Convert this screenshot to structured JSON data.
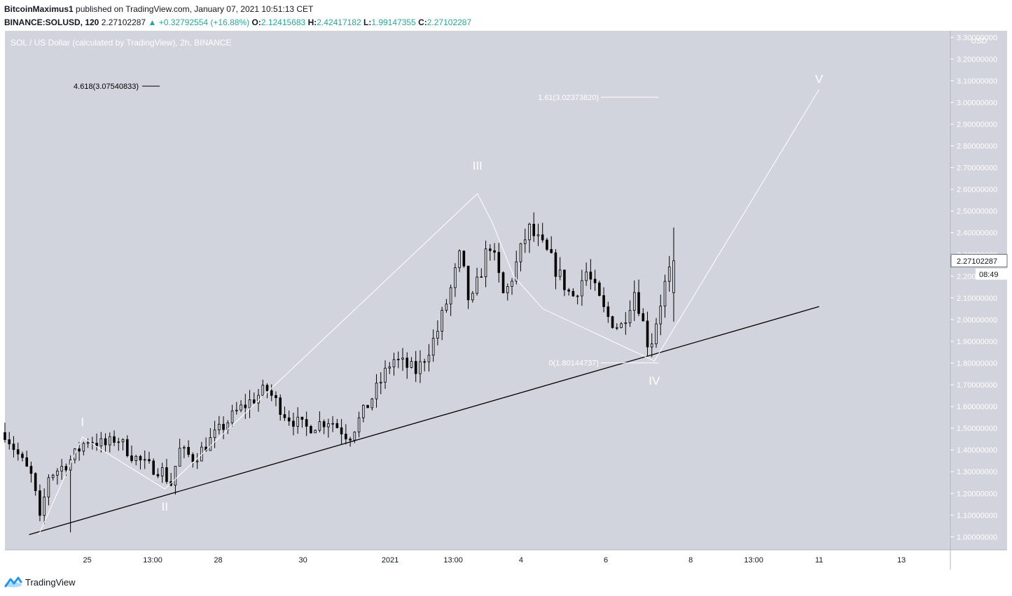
{
  "header": {
    "author": "BitcoinMaximus1",
    "published_text": "published on TradingView.com, January 07, 2021 10:51:13 CET",
    "symbol": "BINANCE:SOLUSD, 120",
    "last": "2.27102287",
    "change": "+0.32792554 (+16.88%)",
    "o_label": "O:",
    "o": "2.12415683",
    "h_label": "H:",
    "h": "2.42417182",
    "l_label": "L:",
    "l": "1.99147355",
    "c_label": "C:",
    "c": "2.27102287"
  },
  "chart_data": {
    "type": "candlestick",
    "title": "SOL / US Dollar (calculated by TradingView), 2h, BINANCE",
    "currency": "USD",
    "ylim": [
      0.94,
      3.33
    ],
    "y_ticks": [
      "1.00000000",
      "1.10000000",
      "1.20000000",
      "1.30000000",
      "1.40000000",
      "1.50000000",
      "1.60000000",
      "1.70000000",
      "1.80000000",
      "1.90000000",
      "2.00000000",
      "2.10000000",
      "2.20000000",
      "2.30000000",
      "2.40000000",
      "2.50000000",
      "2.60000000",
      "2.70000000",
      "2.80000000",
      "2.90000000",
      "3.00000000",
      "3.10000000",
      "3.20000000",
      "3.30000000"
    ],
    "x_ticks": [
      "25",
      "13:00",
      "28",
      "30",
      "2021",
      "13:00",
      "4",
      "6",
      "8",
      "13:00",
      "11",
      "13"
    ],
    "last_price": "2.27102287",
    "countdown": "08:49",
    "bar_count": 154,
    "price_path": [
      [
        0,
        1.48
      ],
      [
        8,
        1.33
      ],
      [
        12,
        1.26
      ],
      [
        14,
        1.05
      ],
      [
        18,
        1.28
      ],
      [
        26,
        1.34
      ],
      [
        34,
        1.45
      ],
      [
        42,
        1.42
      ],
      [
        46,
        1.46
      ],
      [
        52,
        1.38
      ],
      [
        58,
        1.33
      ],
      [
        66,
        1.3
      ],
      [
        68,
        1.22
      ],
      [
        72,
        1.4
      ],
      [
        78,
        1.36
      ],
      [
        86,
        1.46
      ],
      [
        96,
        1.58
      ],
      [
        108,
        1.68
      ],
      [
        116,
        1.56
      ],
      [
        124,
        1.5
      ],
      [
        134,
        1.54
      ],
      [
        142,
        1.46
      ],
      [
        152,
        1.65
      ],
      [
        160,
        1.82
      ],
      [
        170,
        1.76
      ],
      [
        178,
        1.93
      ],
      [
        184,
        2.14
      ],
      [
        188,
        2.3
      ],
      [
        192,
        2.05
      ],
      [
        200,
        2.36
      ],
      [
        206,
        2.1
      ],
      [
        210,
        2.22
      ],
      [
        216,
        2.42
      ],
      [
        224,
        2.3
      ],
      [
        234,
        2.1
      ],
      [
        240,
        2.22
      ],
      [
        248,
        2.02
      ],
      [
        254,
        1.96
      ],
      [
        260,
        2.14
      ],
      [
        266,
        1.86
      ],
      [
        272,
        2.15
      ],
      [
        276,
        2.27
      ]
    ],
    "wave_labels": [
      {
        "label": "I",
        "x": 32,
        "y": 1.51
      },
      {
        "label": "II",
        "x": 66,
        "y": 1.12
      },
      {
        "label": "III",
        "x": 195,
        "y": 2.69
      },
      {
        "label": "IV",
        "x": 268,
        "y": 1.7
      },
      {
        "label": "V",
        "x": 336,
        "y": 3.09
      }
    ],
    "wave_path": [
      [
        14,
        1.01
      ],
      [
        32,
        1.46
      ],
      [
        40,
        1.4
      ],
      [
        66,
        1.22
      ],
      [
        195,
        2.58
      ],
      [
        201,
        2.45
      ],
      [
        210,
        2.2
      ],
      [
        222,
        2.05
      ],
      [
        268,
        1.81
      ],
      [
        336,
        3.06
      ]
    ],
    "trendline": [
      [
        10,
        1.01
      ],
      [
        336,
        2.06
      ]
    ],
    "fib_levels": [
      {
        "text": "4.618(3.07540833)",
        "value": 3.075
      },
      {
        "text": "1.61(3.02373820)",
        "value": 3.024
      },
      {
        "text": "0(1.80144737)",
        "value": 1.801
      }
    ]
  },
  "footer": {
    "brand": "TradingView"
  },
  "colors": {
    "plot_bg": "#d1d4dc",
    "up": "#26a69a",
    "candle": "#000000",
    "wave": "#ffffff"
  }
}
